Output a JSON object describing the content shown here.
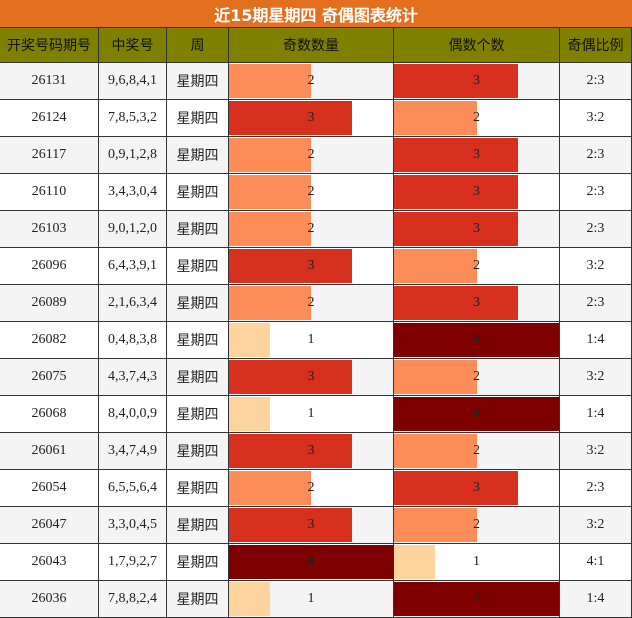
{
  "title": "近15期星期四 奇偶图表统计",
  "table": {
    "columns": [
      "开奖号码期号",
      "中奖号",
      "周",
      "奇数数量",
      "偶数个数",
      "奇偶比例"
    ],
    "bar_colors": [
      "#fdd49e",
      "#fc8d59",
      "#d7301f",
      "#7f0000"
    ],
    "rows": [
      {
        "period": "26131",
        "numbers": "9,6,8,4,1",
        "weekday": "星期四",
        "odd": 2,
        "even": 3,
        "ratio": "2:3"
      },
      {
        "period": "26124",
        "numbers": "7,8,5,3,2",
        "weekday": "星期四",
        "odd": 3,
        "even": 2,
        "ratio": "3:2"
      },
      {
        "period": "26117",
        "numbers": "0,9,1,2,8",
        "weekday": "星期四",
        "odd": 2,
        "even": 3,
        "ratio": "2:3"
      },
      {
        "period": "26110",
        "numbers": "3,4,3,0,4",
        "weekday": "星期四",
        "odd": 2,
        "even": 3,
        "ratio": "2:3"
      },
      {
        "period": "26103",
        "numbers": "9,0,1,2,0",
        "weekday": "星期四",
        "odd": 2,
        "even": 3,
        "ratio": "2:3"
      },
      {
        "period": "26096",
        "numbers": "6,4,3,9,1",
        "weekday": "星期四",
        "odd": 3,
        "even": 2,
        "ratio": "3:2"
      },
      {
        "period": "26089",
        "numbers": "2,1,6,3,4",
        "weekday": "星期四",
        "odd": 2,
        "even": 3,
        "ratio": "2:3"
      },
      {
        "period": "26082",
        "numbers": "0,4,8,3,8",
        "weekday": "星期四",
        "odd": 1,
        "even": 4,
        "ratio": "1:4"
      },
      {
        "period": "26075",
        "numbers": "4,3,7,4,3",
        "weekday": "星期四",
        "odd": 3,
        "even": 2,
        "ratio": "3:2"
      },
      {
        "period": "26068",
        "numbers": "8,4,0,0,9",
        "weekday": "星期四",
        "odd": 1,
        "even": 4,
        "ratio": "1:4"
      },
      {
        "period": "26061",
        "numbers": "3,4,7,4,9",
        "weekday": "星期四",
        "odd": 3,
        "even": 2,
        "ratio": "3:2"
      },
      {
        "period": "26054",
        "numbers": "6,5,5,6,4",
        "weekday": "星期四",
        "odd": 2,
        "even": 3,
        "ratio": "2:3"
      },
      {
        "period": "26047",
        "numbers": "3,3,0,4,5",
        "weekday": "星期四",
        "odd": 3,
        "even": 2,
        "ratio": "3:2"
      },
      {
        "period": "26043",
        "numbers": "1,7,9,2,7",
        "weekday": "星期四",
        "odd": 4,
        "even": 1,
        "ratio": "4:1"
      },
      {
        "period": "26036",
        "numbers": "7,8,8,2,4",
        "weekday": "星期四",
        "odd": 1,
        "even": 4,
        "ratio": "1:4"
      }
    ]
  }
}
